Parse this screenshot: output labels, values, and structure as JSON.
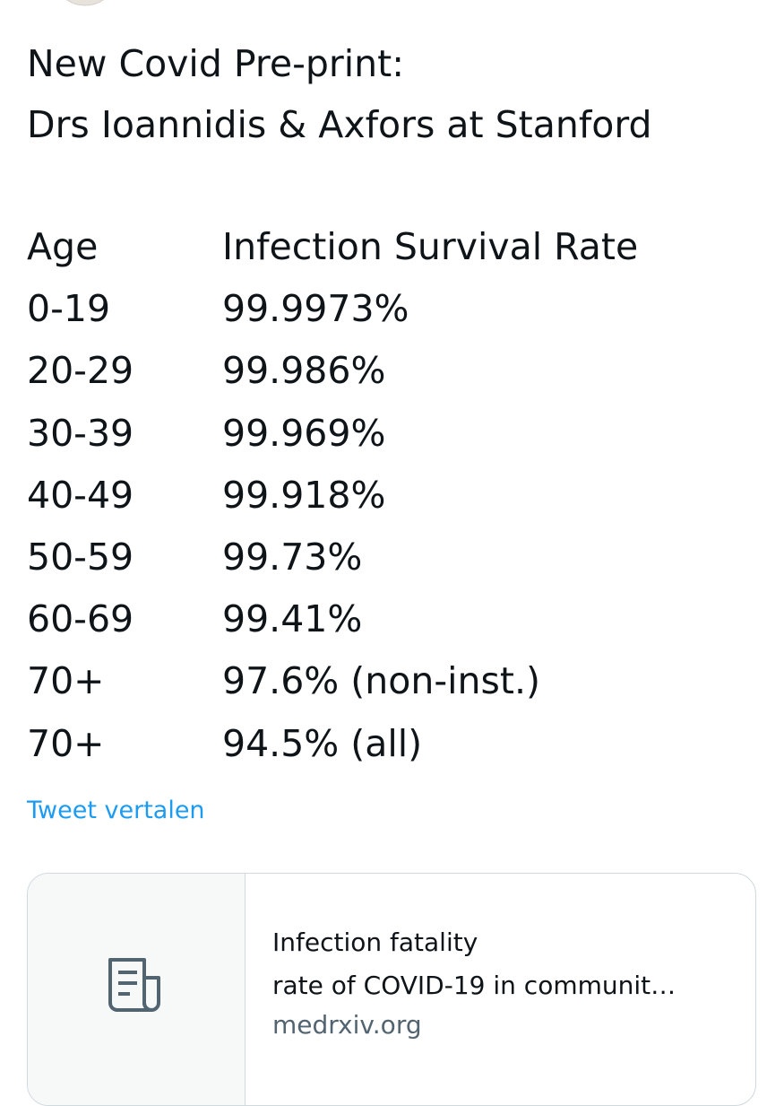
{
  "tweet": {
    "title_lines": [
      "New Covid Pre-print:",
      "Drs Ioannidis & Axfors at Stanford"
    ],
    "table": {
      "header": [
        "Age",
        "Infection Survival Rate"
      ],
      "rows": [
        [
          "0-19",
          "99.9973%"
        ],
        [
          "20-29",
          "99.986%"
        ],
        [
          "30-39",
          "99.969%"
        ],
        [
          "40-49",
          "99.918%"
        ],
        [
          "50-59",
          "99.73%"
        ],
        [
          "60-69",
          "99.41%"
        ],
        [
          "70+",
          "97.6% (non-inst.)"
        ],
        [
          "70+",
          "94.5% (all)"
        ]
      ]
    },
    "translate_link": "Tweet vertalen",
    "card": {
      "title_lines": [
        "Infection fatality",
        "rate of COVID-19 in communit…"
      ],
      "domain": "medrxiv.org"
    }
  }
}
